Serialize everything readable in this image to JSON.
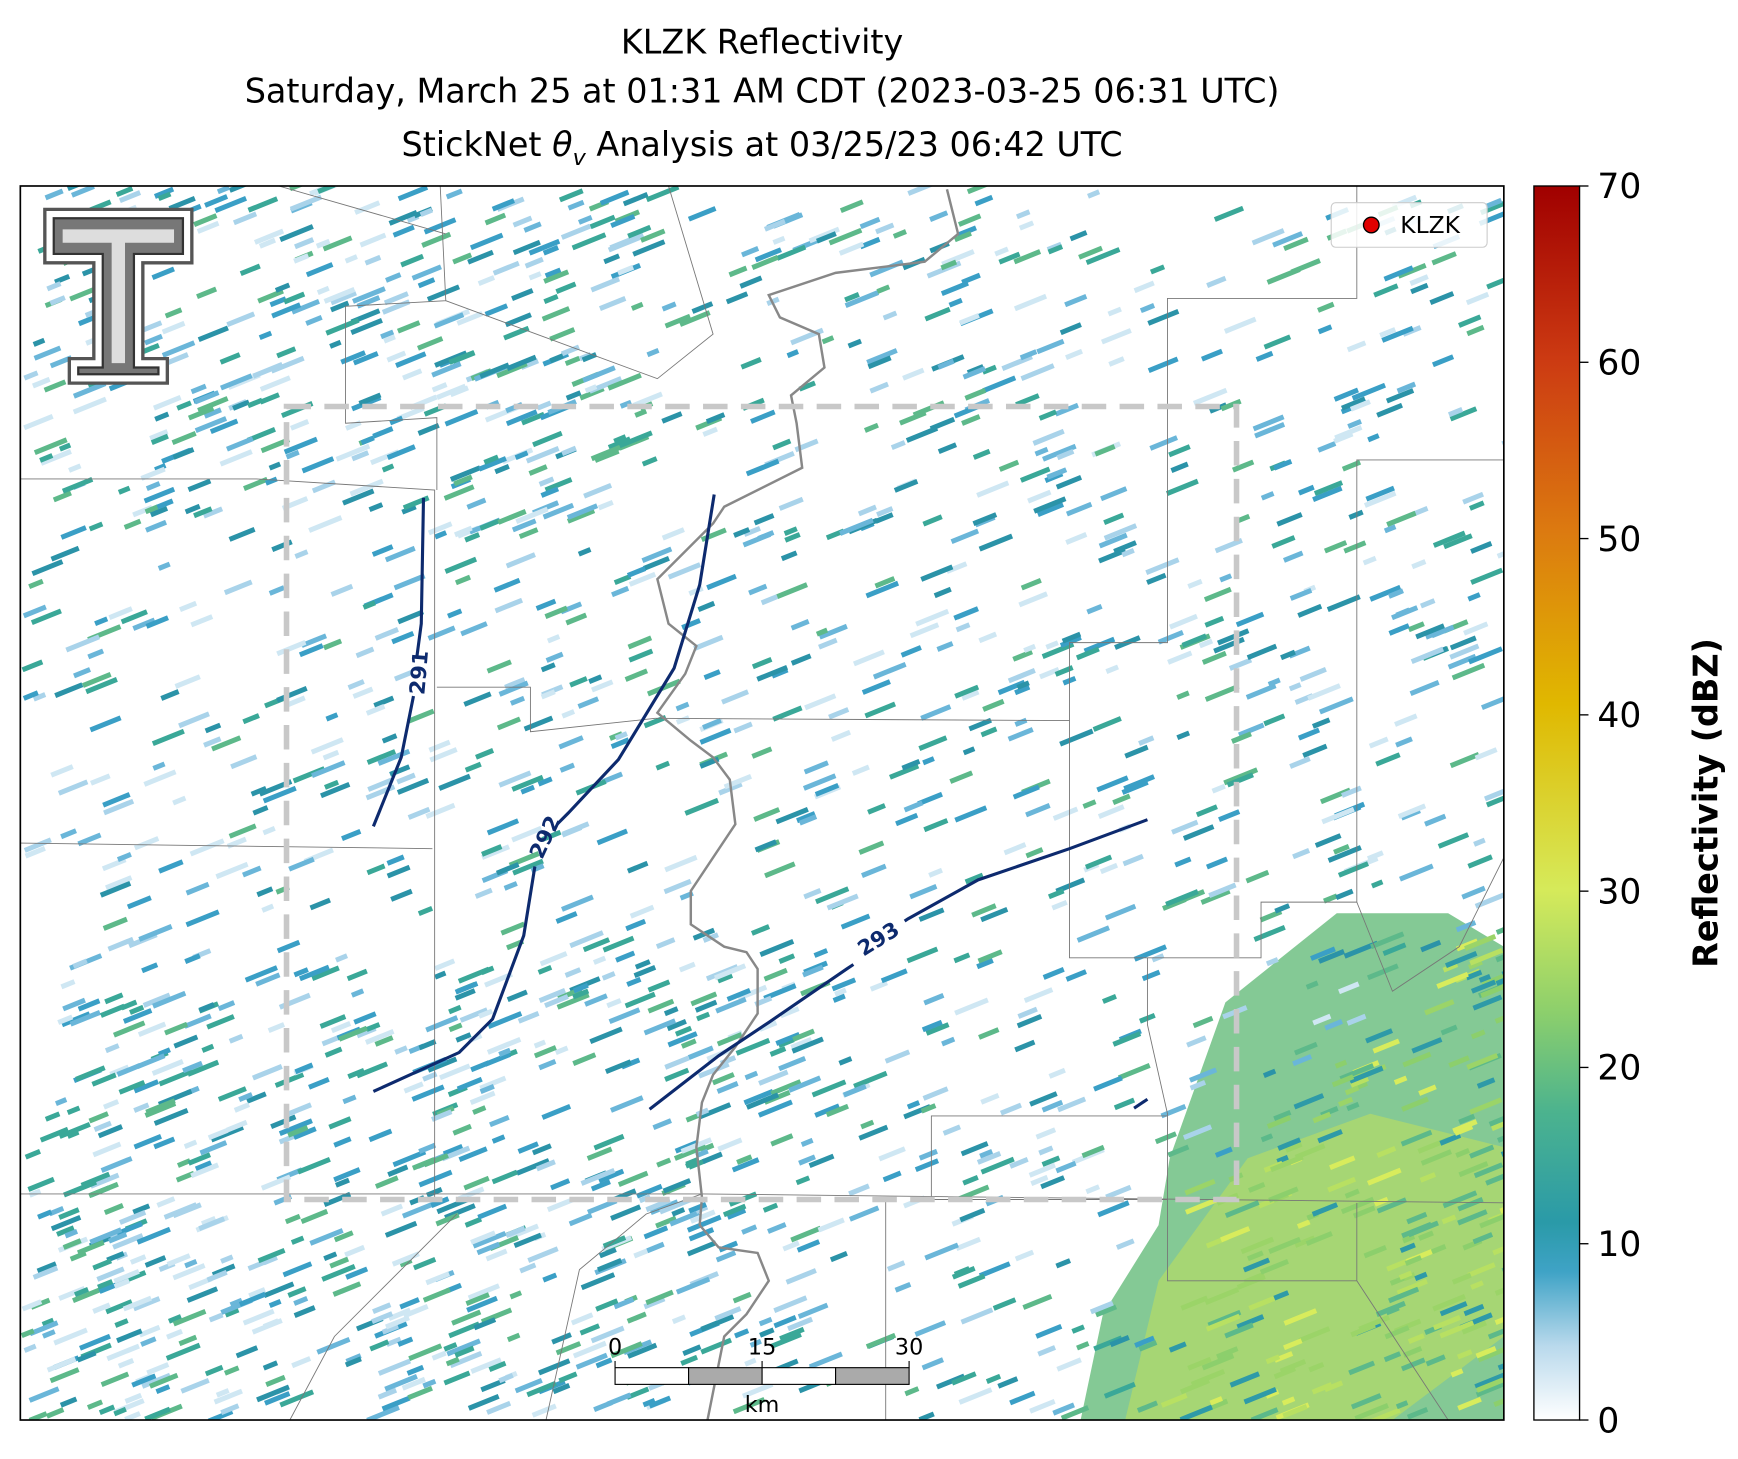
{
  "title": {
    "line1": "KLZK Reflectivity",
    "line2": "Saturday, March 25 at 01:31 AM CDT (2023-03-25 06:31 UTC)",
    "line3_prefix": "StickNet ",
    "line3_symbol": "θ",
    "line3_subscript": "v",
    "line3_suffix": " Analysis at 03/25/23 06:42 UTC"
  },
  "map": {
    "legend": {
      "label": "KLZK"
    },
    "contours": [
      {
        "label": 291
      },
      {
        "label": 292
      },
      {
        "label": 293
      }
    ],
    "scale_bar": {
      "ticks": [
        0,
        15,
        30
      ],
      "unit": "km"
    }
  },
  "colorbar": {
    "label": "Reflectivity (dBZ)",
    "lim": [
      0,
      70
    ],
    "ticks": [
      0,
      10,
      20,
      30,
      40,
      50,
      60,
      70
    ]
  }
}
